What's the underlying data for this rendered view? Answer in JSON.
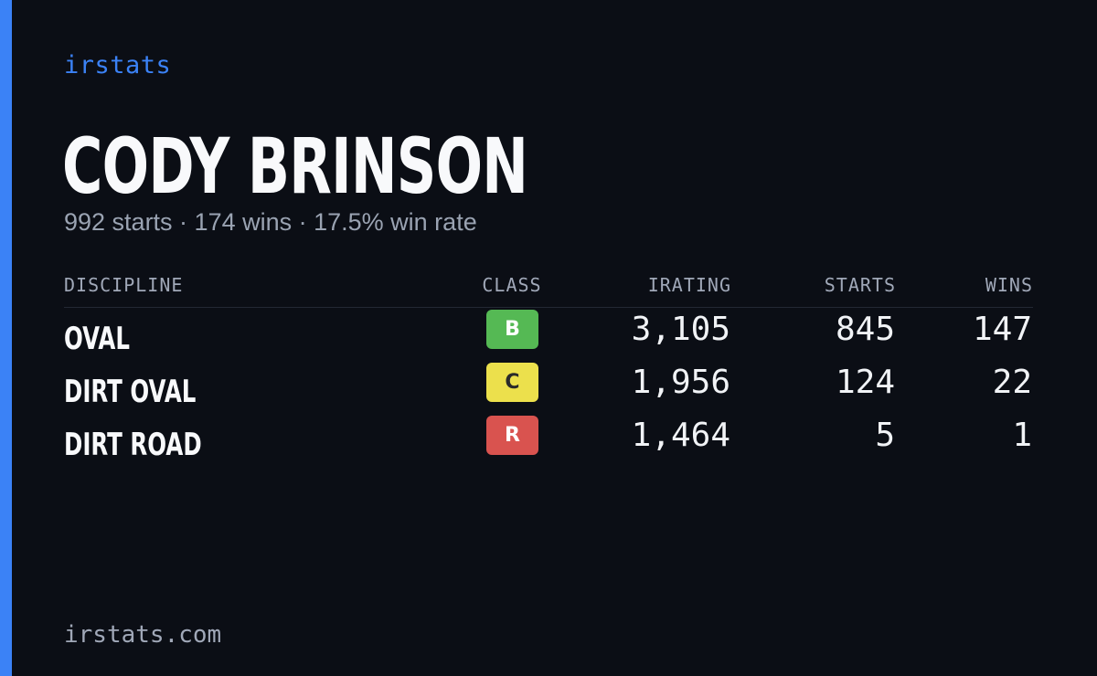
{
  "brand": "irstats",
  "driver": {
    "name": "CODY BRINSON",
    "summary": "992 starts · 174 wins · 17.5% win rate"
  },
  "table": {
    "headers": {
      "discipline": "DISCIPLINE",
      "class": "CLASS",
      "irating": "IRATING",
      "starts": "STARTS",
      "wins": "WINS"
    },
    "rows": [
      {
        "discipline": "OVAL",
        "class": "B",
        "class_color": "#55b954",
        "irating": "3,105",
        "starts": "845",
        "wins": "147"
      },
      {
        "discipline": "DIRT OVAL",
        "class": "C",
        "class_color": "#ece04c",
        "irating": "1,956",
        "starts": "124",
        "wins": "22"
      },
      {
        "discipline": "DIRT ROAD",
        "class": "R",
        "class_color": "#d9534f",
        "irating": "1,464",
        "starts": "5",
        "wins": "1"
      }
    ]
  },
  "footer": {
    "url": "irstats.com"
  },
  "colors": {
    "accent": "#3b82f6",
    "background": "#0b0e15"
  }
}
